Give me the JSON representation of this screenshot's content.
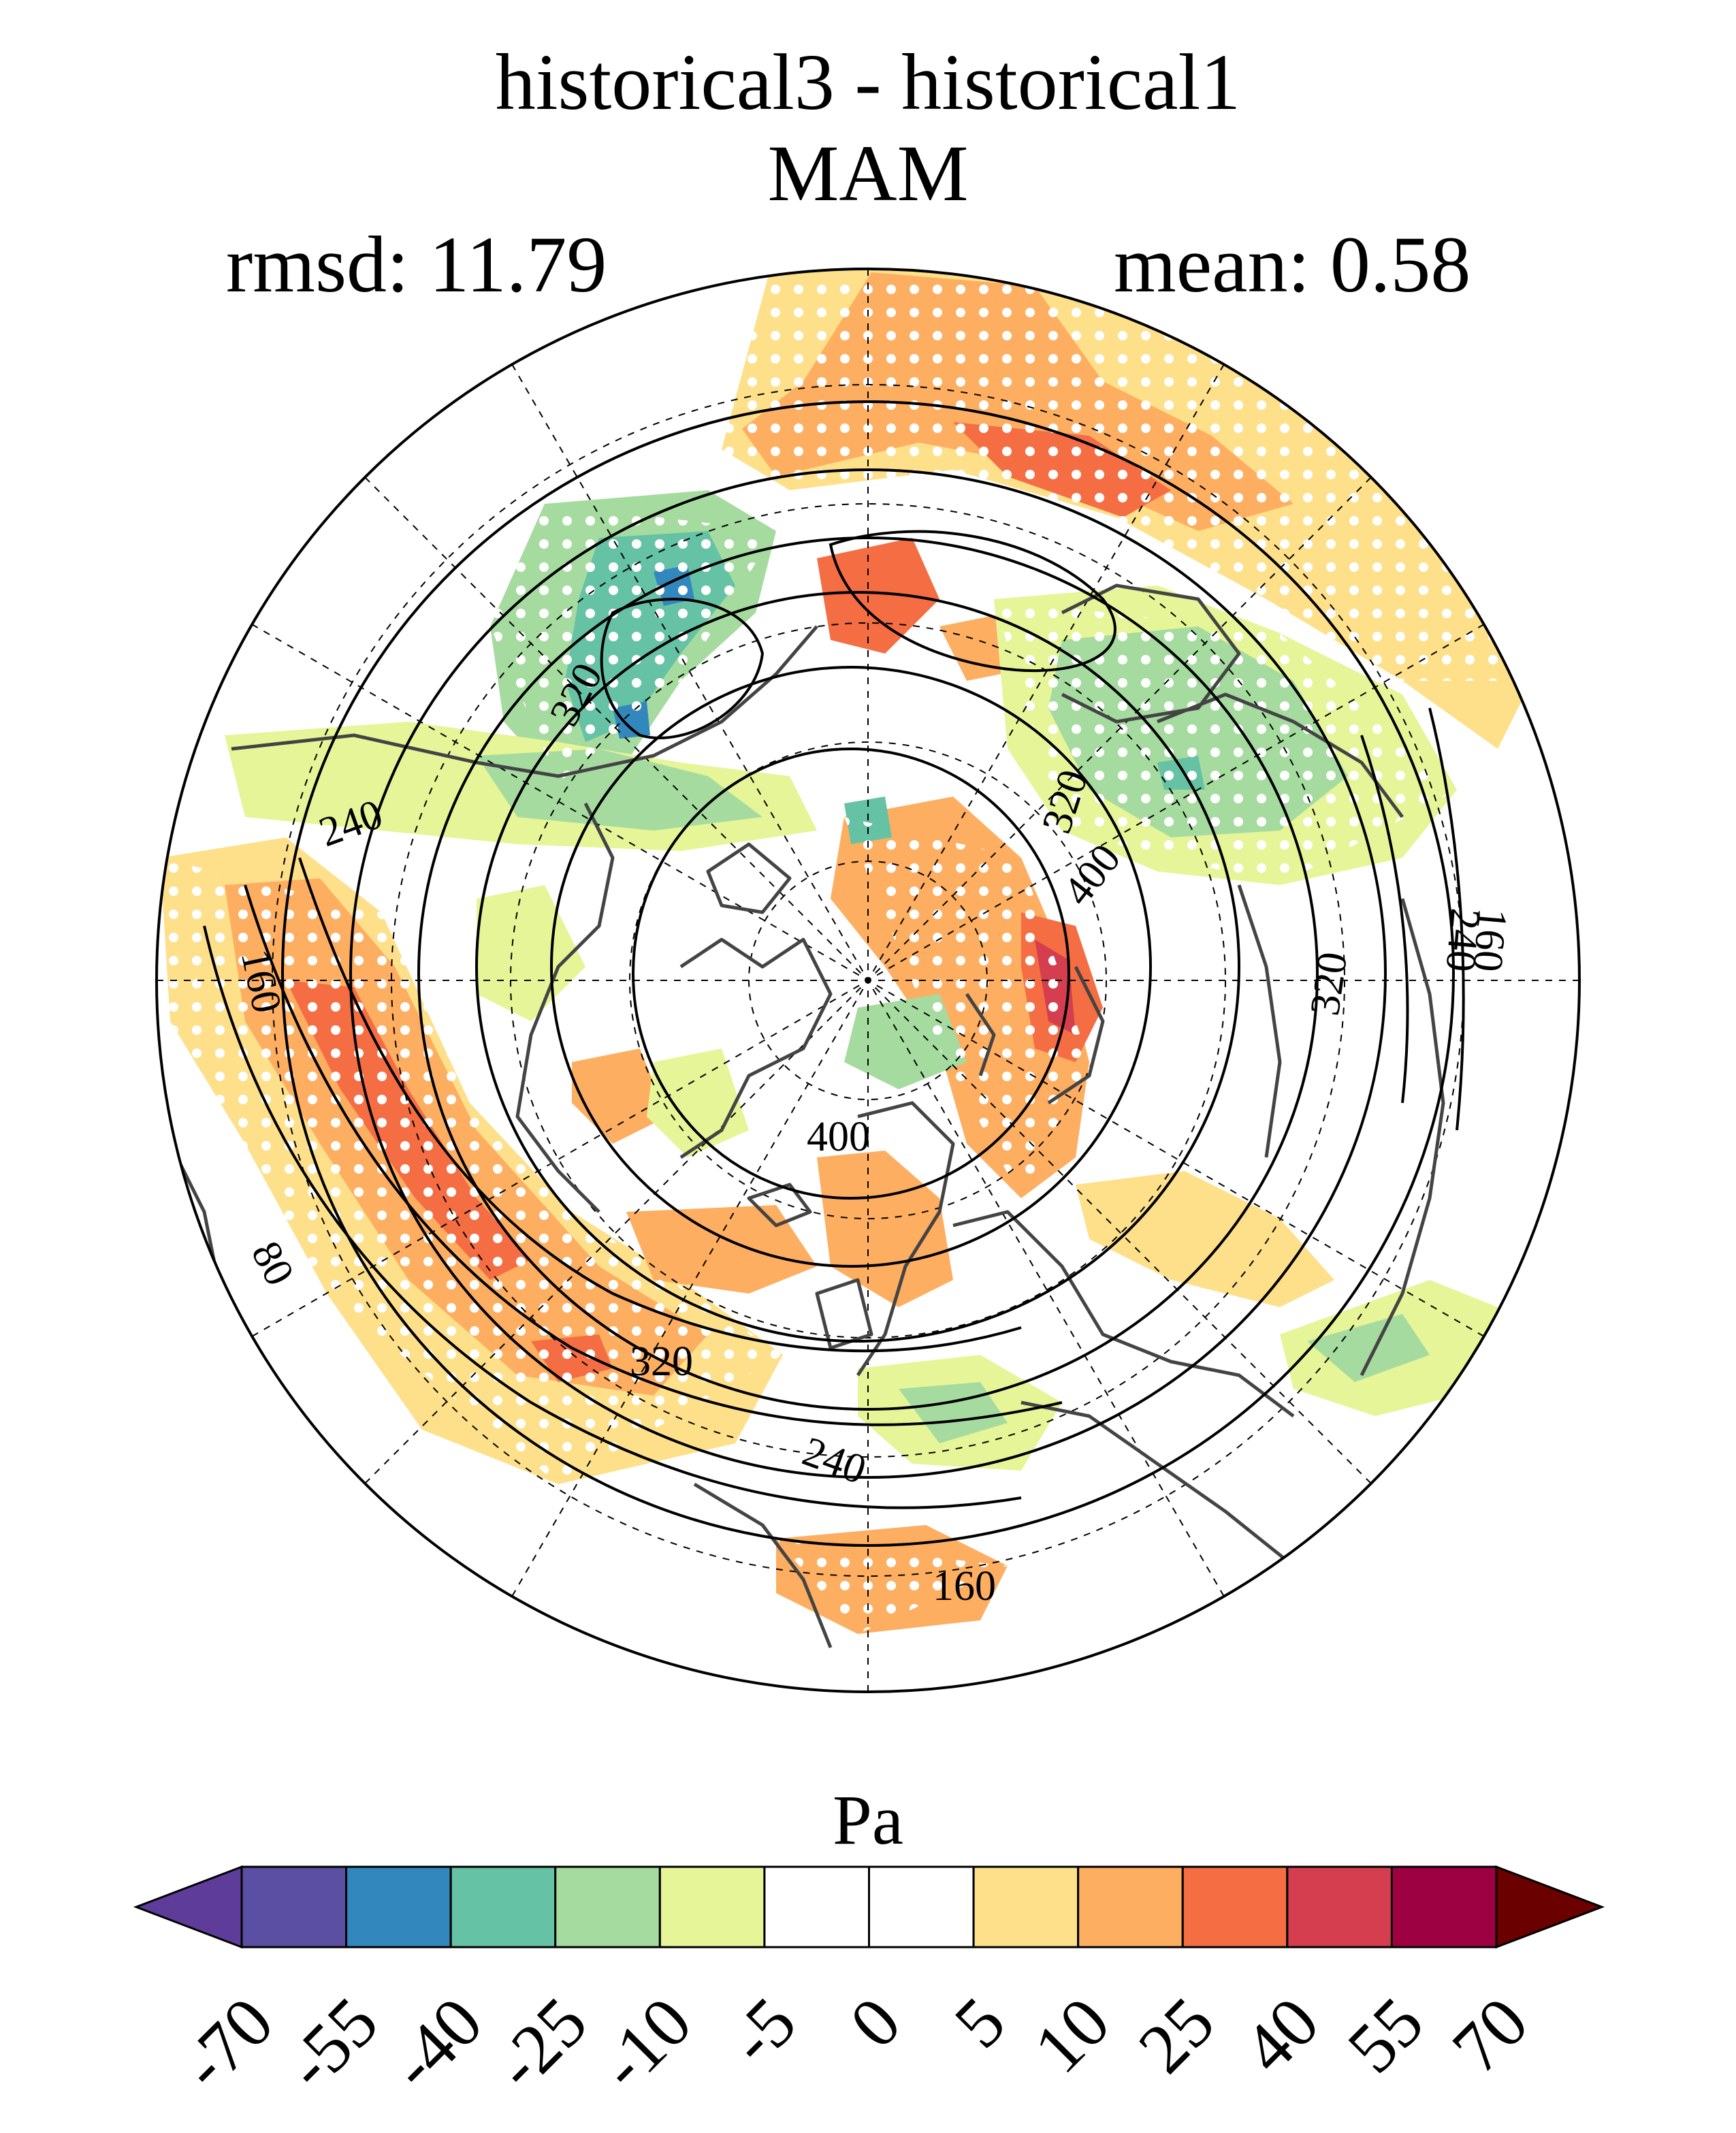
{
  "title": "historical3 - historical1",
  "season": "MAM",
  "stats": {
    "rmsd_label": "rmsd: 11.79",
    "mean_label": "mean: 0.58"
  },
  "map": {
    "projection": "north-polar-stereographic",
    "contour_labels": [
      "320",
      "240",
      "160",
      "80",
      "320",
      "400",
      "320",
      "240",
      "160",
      "400",
      "320",
      "240",
      "160"
    ],
    "stippling": "white dots mark significant differences"
  },
  "colorbar": {
    "units": "Pa",
    "tick_labels": [
      "-70",
      "-55",
      "-40",
      "-25",
      "-10",
      "-5",
      "0",
      "5",
      "10",
      "25",
      "40",
      "55",
      "70"
    ],
    "colors": [
      "#5e3c99",
      "#5a4fa2",
      "#3288bd",
      "#66c2a5",
      "#a6dba0",
      "#e6f598",
      "#ffffff",
      "#ffffff",
      "#fee08b",
      "#fdae61",
      "#f46d43",
      "#d53e4f",
      "#9e0142",
      "#6a0000"
    ]
  }
}
